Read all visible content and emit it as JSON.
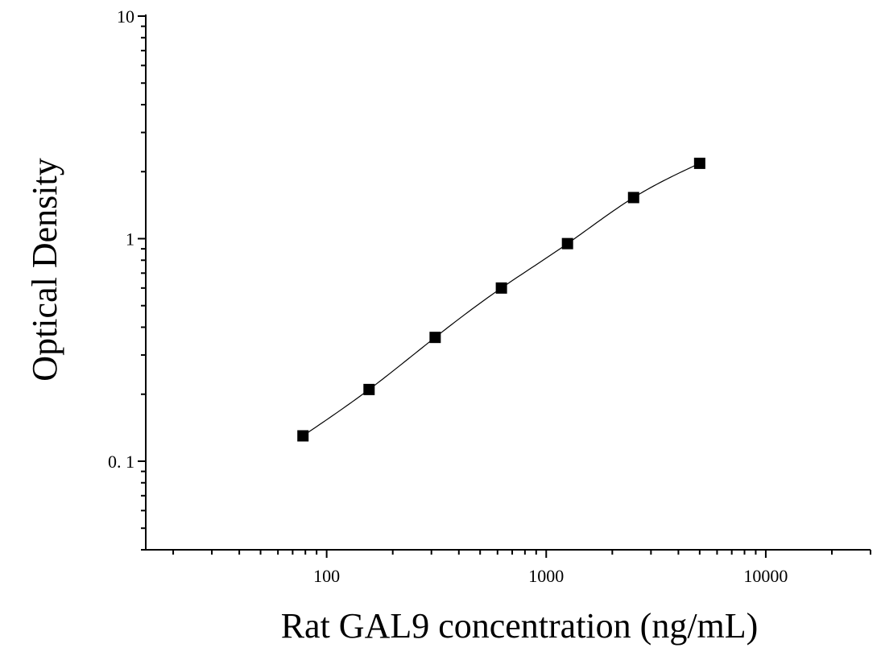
{
  "chart_data": {
    "type": "scatter",
    "xlabel": "Rat GAL9 concentration (ng/mL)",
    "ylabel": "Optical Density",
    "x_scale": "log",
    "y_scale": "log",
    "xlim": [
      15,
      30000
    ],
    "ylim": [
      0.04,
      10
    ],
    "x_ticks": [
      100,
      1000,
      10000
    ],
    "x_tick_labels": [
      "100",
      "1000",
      "10000"
    ],
    "y_ticks": [
      0.1,
      1,
      10
    ],
    "y_tick_labels": [
      "0. 1",
      "1",
      "10"
    ],
    "grid": false,
    "legend": "none",
    "series": [
      {
        "x": [
          78,
          156,
          312,
          625,
          1250,
          2500,
          5000
        ],
        "y": [
          0.13,
          0.21,
          0.36,
          0.6,
          0.95,
          1.53,
          2.18
        ],
        "marker": "square",
        "fit_line": true
      }
    ],
    "colors": {
      "marker": "#000000",
      "line": "#000000",
      "axis": "#000000"
    }
  }
}
